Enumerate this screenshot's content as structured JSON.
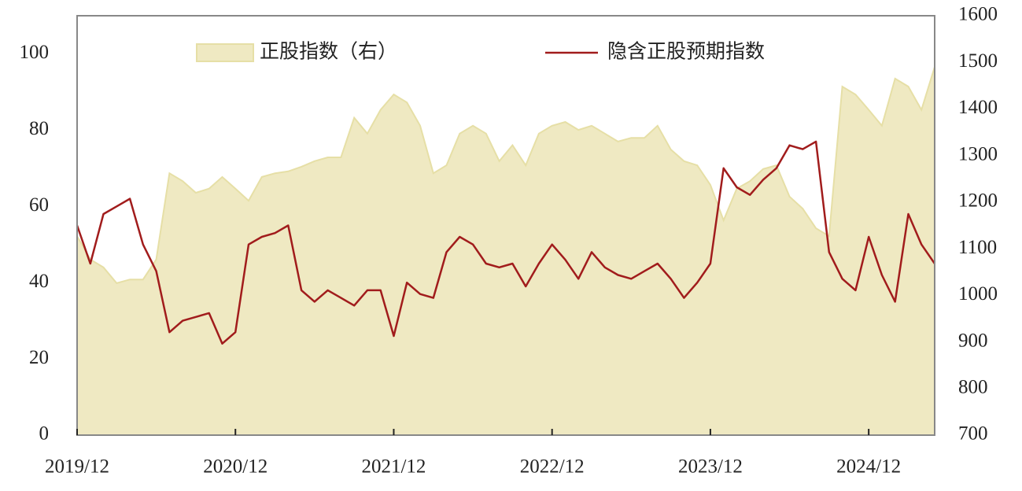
{
  "chart_data": {
    "type": "line",
    "x": [
      "2019/12",
      "2020/01",
      "2020/02",
      "2020/03",
      "2020/04",
      "2020/05",
      "2020/06",
      "2020/07",
      "2020/08",
      "2020/09",
      "2020/10",
      "2020/11",
      "2020/12",
      "2021/01",
      "2021/02",
      "2021/03",
      "2021/04",
      "2021/05",
      "2021/06",
      "2021/07",
      "2021/08",
      "2021/09",
      "2021/10",
      "2021/11",
      "2021/12",
      "2022/01",
      "2022/02",
      "2022/03",
      "2022/04",
      "2022/05",
      "2022/06",
      "2022/07",
      "2022/08",
      "2022/09",
      "2022/10",
      "2022/11",
      "2022/12",
      "2023/01",
      "2023/02",
      "2023/03",
      "2023/04",
      "2023/05",
      "2023/06",
      "2023/07",
      "2023/08",
      "2023/09",
      "2023/10",
      "2023/11",
      "2023/12",
      "2024/01",
      "2024/02",
      "2024/03",
      "2024/04",
      "2024/05",
      "2024/06",
      "2024/07",
      "2024/08",
      "2024/09",
      "2024/10",
      "2024/11",
      "2024/12",
      "2025/01",
      "2025/02",
      "2025/03",
      "2025/04",
      "2025/05"
    ],
    "series": [
      {
        "name": "正股指数（右）",
        "type": "area",
        "color": "#efe9c2",
        "axis": "y2",
        "values": [
          1127,
          1077,
          1060,
          1026,
          1034,
          1034,
          1077,
          1262,
          1245,
          1220,
          1229,
          1254,
          1229,
          1203,
          1254,
          1262,
          1266,
          1276,
          1288,
          1296,
          1296,
          1381,
          1347,
          1398,
          1431,
          1414,
          1364,
          1262,
          1279,
          1347,
          1364,
          1347,
          1288,
          1322,
          1279,
          1347,
          1364,
          1372,
          1355,
          1364,
          1347,
          1330,
          1338,
          1338,
          1364,
          1313,
          1288,
          1279,
          1237,
          1161,
          1229,
          1245,
          1271,
          1279,
          1212,
          1186,
          1144,
          1127,
          1448,
          1431,
          1398,
          1364,
          1465,
          1448,
          1398,
          1490
        ]
      },
      {
        "name": "隐含正股预期指数",
        "type": "line",
        "color": "#a11c1c",
        "values": [
          55,
          45,
          58,
          60,
          62,
          50,
          43,
          27,
          30,
          31,
          32,
          24,
          27,
          50,
          52,
          53,
          55,
          38,
          35,
          38,
          36,
          34,
          38,
          38,
          26,
          40,
          37,
          36,
          48,
          52,
          50,
          45,
          44,
          45,
          39,
          45,
          50,
          46,
          41,
          48,
          44,
          42,
          41,
          43,
          45,
          41,
          36,
          40,
          45,
          70,
          65,
          63,
          67,
          70,
          76,
          75,
          77,
          48,
          41,
          38,
          52,
          42,
          35,
          58,
          50,
          45
        ]
      }
    ],
    "ylim": [
      0,
      110
    ],
    "yticks": [
      0,
      20,
      40,
      60,
      80,
      100
    ],
    "y2lim": [
      700,
      1600
    ],
    "y2ticks": [
      700,
      800,
      900,
      1000,
      1100,
      1200,
      1300,
      1400,
      1500,
      1600
    ],
    "xticks": [
      "2019/12",
      "2020/12",
      "2021/12",
      "2022/12",
      "2023/12",
      "2024/12"
    ]
  }
}
